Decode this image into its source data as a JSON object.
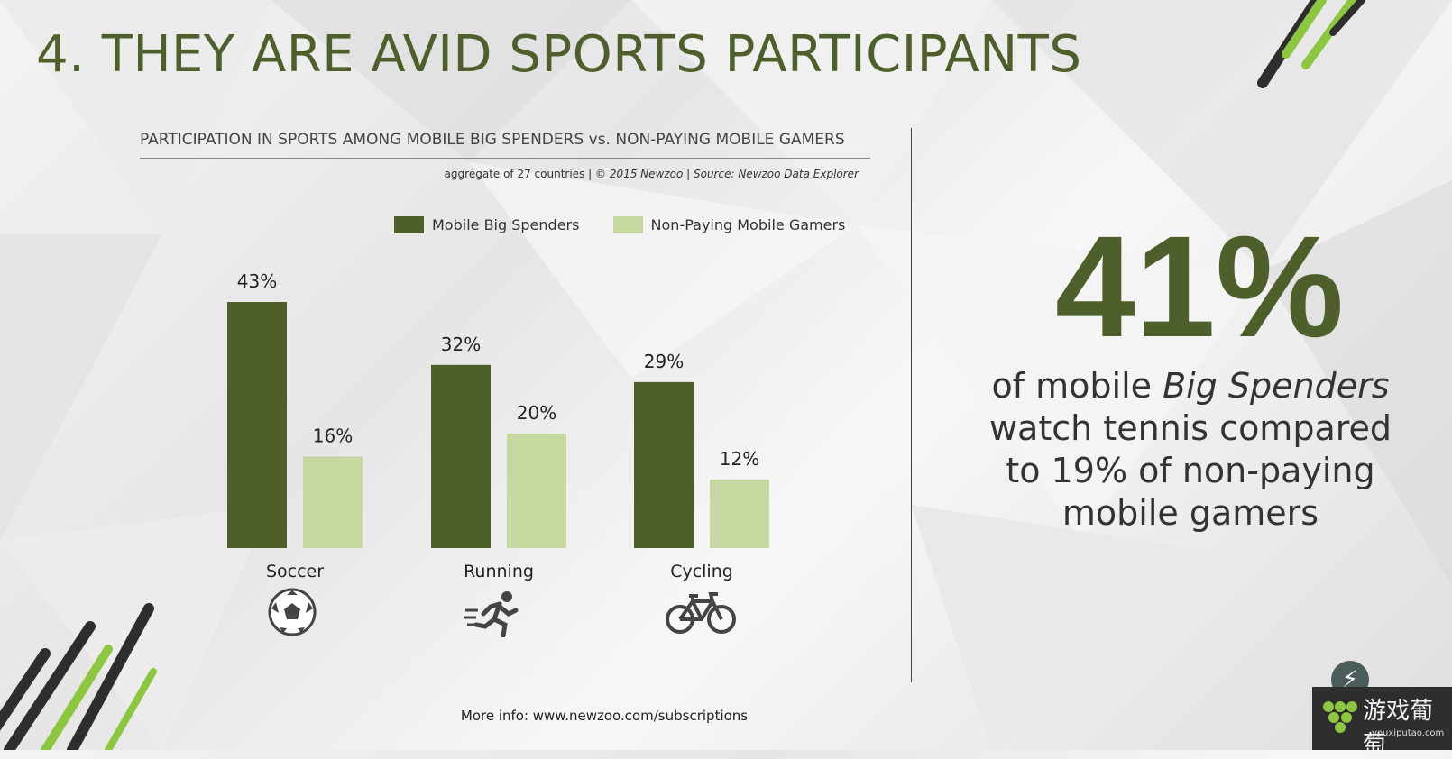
{
  "page": {
    "title": "4. THEY ARE AVID SPORTS PARTICIPANTS",
    "footer": "More info: www.newzoo.com/subscriptions"
  },
  "chart_data": {
    "type": "bar",
    "title": "PARTICIPATION IN SPORTS AMONG MOBILE BIG SPENDERS vs. NON-PAYING MOBILE GAMERS",
    "subtitle_plain": "aggregate of 27 countries | ",
    "subtitle_italic": "© 2015 Newzoo | Source: Newzoo Data Explorer",
    "categories": [
      "Soccer",
      "Running",
      "Cycling"
    ],
    "series": [
      {
        "name": "Mobile Big Spenders",
        "values": [
          43,
          32,
          29
        ],
        "labels": [
          "43%",
          "32%",
          "29%"
        ],
        "color": "#4e5f2b"
      },
      {
        "name": "Non-Paying Mobile Gamers",
        "values": [
          16,
          20,
          12
        ],
        "labels": [
          "16%",
          "20%",
          "12%"
        ],
        "color": "#c6d8a0"
      }
    ],
    "ylim": [
      0,
      45
    ],
    "grid": false,
    "legend_position": "top",
    "category_icons": [
      "soccer-ball-icon",
      "runner-icon",
      "bicycle-icon"
    ]
  },
  "stat": {
    "value": "41%",
    "line1_plain": "of mobile ",
    "line1_italic": "Big Spenders",
    "rest": "watch tennis compared to 19% of non-paying mobile gamers"
  },
  "watermark": {
    "text": "游戏葡萄",
    "url": "youxiputao.com"
  },
  "colors": {
    "accent": "#4e5f2b",
    "accent_light": "#c6d8a0",
    "lime": "#8dc63f"
  }
}
